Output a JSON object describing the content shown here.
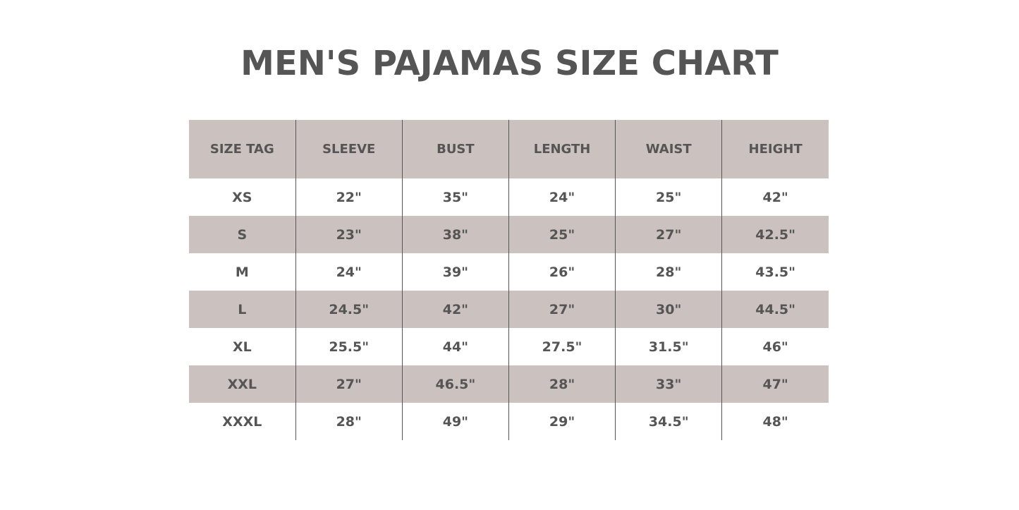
{
  "title": "MEN'S PAJAMAS SIZE CHART",
  "colors": {
    "header_bg": "#cbc1be",
    "text": "#555555",
    "background": "#ffffff"
  },
  "table": {
    "headers": [
      "SIZE TAG",
      "SLEEVE",
      "BUST",
      "LENGTH",
      "WAIST",
      "HEIGHT"
    ],
    "rows": [
      [
        "XS",
        "22\"",
        "35\"",
        "24\"",
        "25\"",
        "42\""
      ],
      [
        "S",
        "23\"",
        "38\"",
        "25\"",
        "27\"",
        "42.5\""
      ],
      [
        "M",
        "24\"",
        "39\"",
        "26\"",
        "28\"",
        "43.5\""
      ],
      [
        "L",
        "24.5\"",
        "42\"",
        "27\"",
        "30\"",
        "44.5\""
      ],
      [
        "XL",
        "25.5\"",
        "44\"",
        "27.5\"",
        "31.5\"",
        "46\""
      ],
      [
        "XXL",
        "27\"",
        "46.5\"",
        "28\"",
        "33\"",
        "47\""
      ],
      [
        "XXXL",
        "28\"",
        "49\"",
        "29\"",
        "34.5\"",
        "48\""
      ]
    ]
  }
}
